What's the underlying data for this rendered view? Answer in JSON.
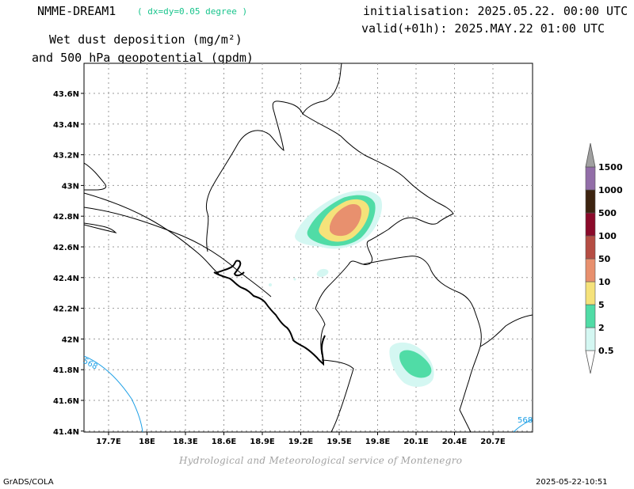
{
  "header": {
    "model": "NMME-DREAM1",
    "resolution": "( dx=dy=0.05 degree )",
    "initialisation": "initialisation: 2025.05.22. 00:00 UTC",
    "valid": "valid(+01h): 2025.MAY.22 01:00 UTC",
    "title_line1": "Wet dust deposition (mg/m²)",
    "title_line2": "and 500 hPa geopotential (gpdm)"
  },
  "map": {
    "lat_labels": [
      "43.6N",
      "43.4N",
      "43.2N",
      "43N",
      "42.8N",
      "42.6N",
      "42.4N",
      "42.2N",
      "42N",
      "41.8N",
      "41.6N",
      "41.4N"
    ],
    "lon_labels": [
      "17.7E",
      "18E",
      "18.3E",
      "18.6E",
      "18.9E",
      "19.2E",
      "19.5E",
      "19.8E",
      "20.1E",
      "20.4E",
      "20.7E"
    ],
    "contour_labels": [
      "568",
      "568"
    ],
    "grid": true,
    "colors": {
      "frame": "#000000",
      "grid": "#9a9a9a",
      "coast": "#000000",
      "contour": "#1fa0e6"
    }
  },
  "legend": {
    "levels": [
      "0.5",
      "2",
      "5",
      "10",
      "50",
      "100",
      "500",
      "1000",
      "1500"
    ],
    "colors": [
      "#d4f7f2",
      "#50dca6",
      "#f5e27a",
      "#e8906e",
      "#b54d43",
      "#8b0a2a",
      "#3d2410",
      "#926ea8",
      "#a0a0a0"
    ]
  },
  "footer": {
    "credit": "Hydrological and Meteorological service of Montenegro",
    "software": "GrADS/COLA",
    "timestamp": "2025-05-22-10:51"
  }
}
